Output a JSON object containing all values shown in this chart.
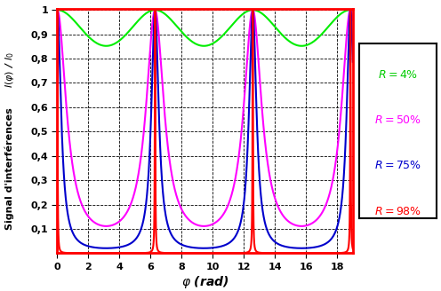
{
  "title": "",
  "xlabel": "$\\varphi$ (rad)",
  "ylabel_bottom": "Signal d'interférences",
  "ylabel_top": "$I(\\varphi)$ / $I_0$",
  "xlim": [
    0,
    19
  ],
  "ylim": [
    0,
    1.005
  ],
  "xticks": [
    0,
    2,
    4,
    6,
    8,
    10,
    12,
    14,
    16,
    18
  ],
  "yticks": [
    0.1,
    0.2,
    0.3,
    0.4,
    0.5,
    0.6,
    0.7,
    0.8,
    0.9,
    1.0
  ],
  "ytick_labels": [
    "0,1",
    "0,2",
    "0,3",
    "0,4",
    "0,5",
    "0,6",
    "0,7",
    "0,8",
    "0,9",
    "1"
  ],
  "R_values": [
    0.04,
    0.5,
    0.75,
    0.98
  ],
  "colors": [
    "#00ee00",
    "#ff00ff",
    "#0000cc",
    "#ff0000"
  ],
  "legend_labels": [
    "$R = 4\\%$",
    "$R = 50\\%$",
    "$R = 75\\%$",
    "$R = 98\\%$"
  ],
  "legend_colors": [
    "#00cc00",
    "#ff00ff",
    "#0000cc",
    "#ff0000"
  ],
  "background_color": "#ffffff",
  "figsize": [
    4.96,
    3.28
  ],
  "dpi": 100
}
